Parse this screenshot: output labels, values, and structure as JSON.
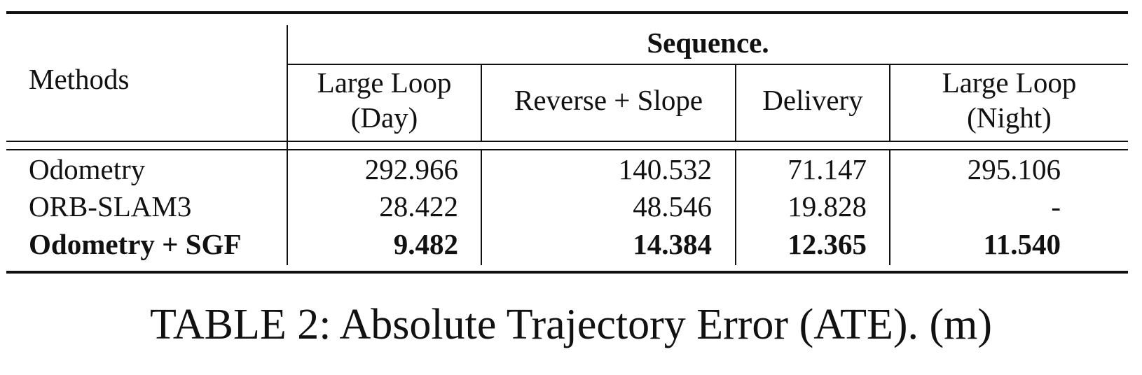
{
  "table": {
    "group_header": "Sequence.",
    "methods_header": "Methods",
    "columns": [
      {
        "line1": "Large Loop",
        "line2": "(Day)"
      },
      {
        "line1": "Reverse + Slope",
        "line2": ""
      },
      {
        "line1": "Delivery",
        "line2": ""
      },
      {
        "line1": "Large Loop",
        "line2": "(Night)"
      }
    ],
    "rows": [
      {
        "method": "Odometry",
        "values": [
          "292.966",
          "140.532",
          "71.147",
          "295.106"
        ],
        "bold": false
      },
      {
        "method": "ORB-SLAM3",
        "values": [
          "28.422",
          "48.546",
          "19.828",
          "-"
        ],
        "bold": false
      },
      {
        "method": "Odometry + SGF",
        "values": [
          "9.482",
          "14.384",
          "12.365",
          "11.540"
        ],
        "bold": true
      }
    ]
  },
  "caption": "TABLE 2: Absolute Trajectory Error (ATE). (m)"
}
